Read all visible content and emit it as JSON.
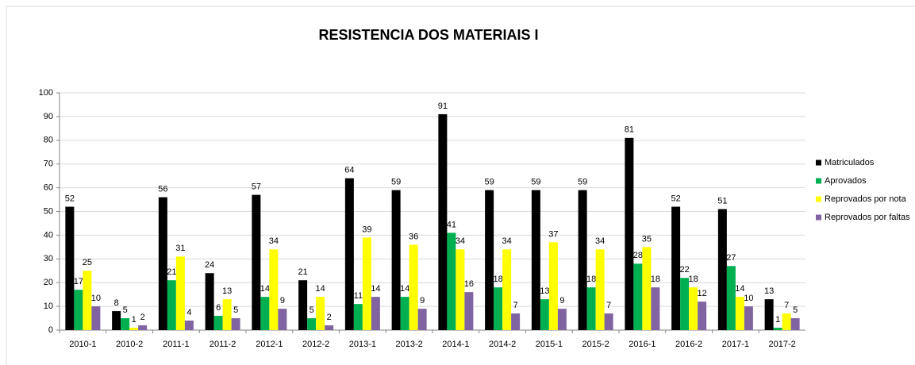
{
  "chart_data": {
    "type": "bar",
    "title": "RESISTENCIA DOS MATERIAIS I",
    "categories": [
      "2010-1",
      "2010-2",
      "2011-1",
      "2011-2",
      "2012-1",
      "2012-2",
      "2013-1",
      "2013-2",
      "2014-1",
      "2014-2",
      "2015-1",
      "2015-2",
      "2016-1",
      "2016-2",
      "2017-1",
      "2017-2"
    ],
    "series": [
      {
        "name": "Matriculados",
        "color": "#000000",
        "values": [
          52,
          8,
          56,
          24,
          57,
          21,
          64,
          59,
          91,
          59,
          59,
          59,
          81,
          52,
          51,
          13
        ]
      },
      {
        "name": "Aprovados",
        "color": "#00b050",
        "values": [
          17,
          5,
          21,
          6,
          14,
          5,
          11,
          14,
          41,
          18,
          13,
          18,
          28,
          22,
          27,
          1
        ]
      },
      {
        "name": "Reprovados por nota",
        "color": "#ffff00",
        "values": [
          25,
          1,
          31,
          13,
          34,
          14,
          39,
          36,
          34,
          34,
          37,
          34,
          35,
          18,
          14,
          7
        ]
      },
      {
        "name": "Reprovados por faltas",
        "color": "#8064a2",
        "values": [
          10,
          2,
          4,
          5,
          9,
          2,
          14,
          9,
          16,
          7,
          9,
          7,
          18,
          12,
          10,
          5
        ]
      }
    ],
    "ylim": [
      0,
      100
    ],
    "yticks": [
      0,
      10,
      20,
      30,
      40,
      50,
      60,
      70,
      80,
      90,
      100
    ],
    "grid": true,
    "legend": "right"
  }
}
